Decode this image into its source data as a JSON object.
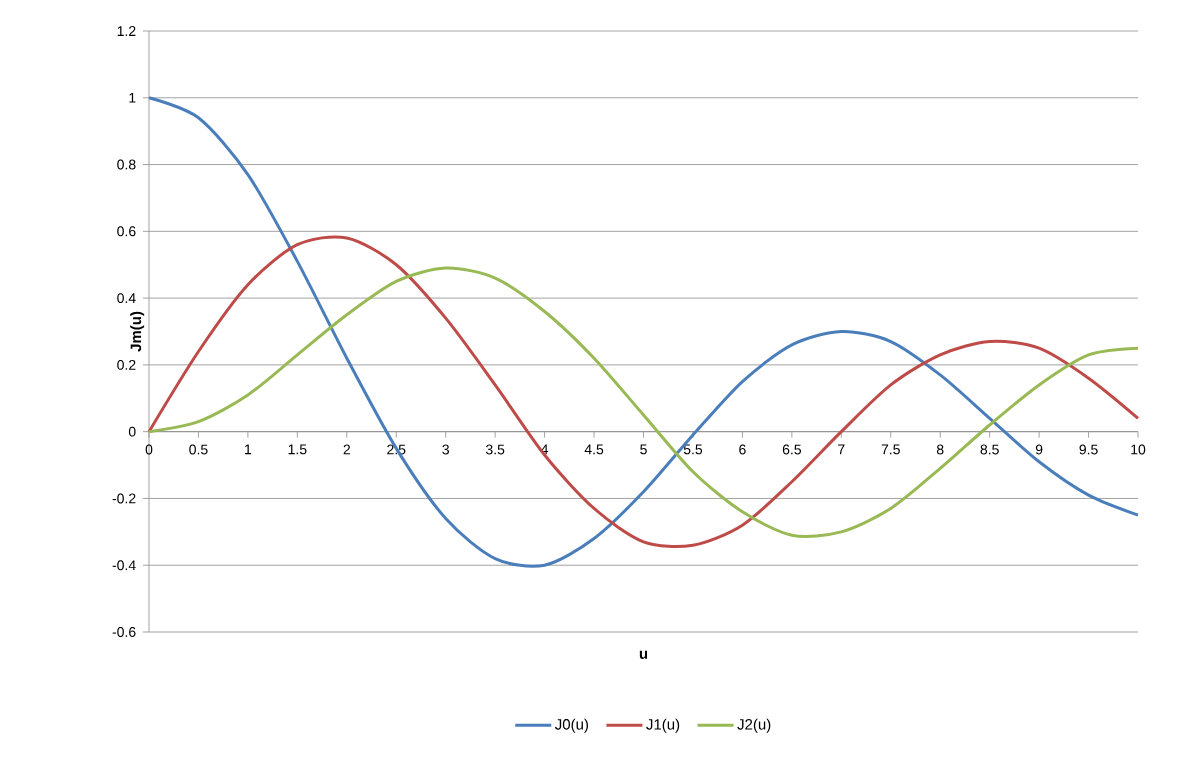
{
  "chart_data": {
    "type": "line",
    "xlabel": "u",
    "ylabel": "Jm(u)",
    "x": [
      0,
      0.5,
      1,
      1.5,
      2,
      2.5,
      3,
      3.5,
      4,
      4.5,
      5,
      5.5,
      6,
      6.5,
      7,
      7.5,
      8,
      8.5,
      9,
      9.5,
      10
    ],
    "series": [
      {
        "name": "J0(u)",
        "color": "#4a7ebb",
        "values": [
          1,
          0.94,
          0.77,
          0.51,
          0.22,
          -0.05,
          -0.26,
          -0.38,
          -0.4,
          -0.32,
          -0.18,
          -0.01,
          0.15,
          0.26,
          0.3,
          0.27,
          0.17,
          0.04,
          -0.09,
          -0.19,
          -0.25
        ]
      },
      {
        "name": "J1(u)",
        "color": "#be4b48",
        "values": [
          0,
          0.24,
          0.44,
          0.56,
          0.58,
          0.5,
          0.34,
          0.14,
          -0.07,
          -0.23,
          -0.33,
          -0.34,
          -0.28,
          -0.15,
          0,
          0.14,
          0.23,
          0.27,
          0.25,
          0.16,
          0.04
        ]
      },
      {
        "name": "J2(u)",
        "color": "#98b954",
        "values": [
          0,
          0.03,
          0.11,
          0.23,
          0.35,
          0.45,
          0.49,
          0.46,
          0.36,
          0.22,
          0.05,
          -0.12,
          -0.24,
          -0.31,
          -0.3,
          -0.23,
          -0.11,
          0.02,
          0.14,
          0.23,
          0.25
        ]
      }
    ],
    "xlim": [
      0,
      10
    ],
    "ylim": [
      -0.6,
      1.2
    ],
    "xticks": [
      0,
      0.5,
      1,
      1.5,
      2,
      2.5,
      3,
      3.5,
      4,
      4.5,
      5,
      5.5,
      6,
      6.5,
      7,
      7.5,
      8,
      8.5,
      9,
      9.5,
      10
    ],
    "yticks": [
      -0.6,
      -0.4,
      -0.2,
      0,
      0.2,
      0.4,
      0.6,
      0.8,
      1,
      1.2
    ],
    "grid": "y",
    "legend": "bottom"
  }
}
